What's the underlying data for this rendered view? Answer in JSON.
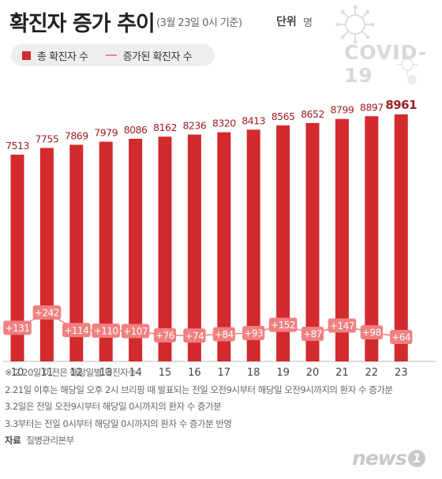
{
  "header": {
    "title": "확진자 증가 추이",
    "subtitle": "(3월 23일 0시 기준)",
    "unit_label": "단위",
    "unit_value": "명"
  },
  "legend": {
    "bar_label": "총 확진자 수",
    "line_label": "증가된 확진자 수"
  },
  "decoration": {
    "covid_text": "COVID-19",
    "icon": "virus-icon"
  },
  "colors": {
    "bar": "#d32a2e",
    "line": "#f08080",
    "value_text": "#a01e23",
    "bubble_text": "#ffffff"
  },
  "chart_data": {
    "type": "bar",
    "categories": [
      "10",
      "11",
      "12",
      "13",
      "14",
      "15",
      "16",
      "17",
      "18",
      "19",
      "20",
      "21",
      "22",
      "23"
    ],
    "series": [
      {
        "name": "총 확진자 수",
        "type": "bar",
        "values": [
          7513,
          7755,
          7869,
          7979,
          8086,
          8162,
          8236,
          8320,
          8413,
          8565,
          8652,
          8799,
          8897,
          8961
        ]
      },
      {
        "name": "증가된 확진자 수",
        "type": "line",
        "values": [
          131,
          242,
          114,
          110,
          107,
          76,
          74,
          84,
          93,
          152,
          87,
          147,
          98,
          64
        ],
        "labels": [
          "+131",
          "+242",
          "+114",
          "+110",
          "+107",
          "+76",
          "+74",
          "+84",
          "+93",
          "+152",
          "+87",
          "+147",
          "+98",
          "+64"
        ]
      }
    ],
    "value_labels": [
      "7513",
      "7755",
      "7869",
      "7979",
      "8086",
      "8162",
      "8236",
      "8320",
      "8413",
      "8565",
      "8652",
      "8799",
      "8897",
      "8961"
    ],
    "highlight_last": true
  },
  "footnotes": [
    "※ 2.20일 이전은 해당일별 확진자수",
    "2.21일 이후는 해당일 오후 2시 브리핑 때 발표되는 전일 오전9시부터 해당일 오전9시까지의 환자 수 증가분",
    "3.2일은 전일 오전9시부터 해당일 0시까지의 환자 수 증가분",
    "3.3부터는 전일 0시부터 해당일 0시까지의 환자 수 증가분 반영"
  ],
  "source": {
    "label": "자료",
    "value": "질병관리본부"
  },
  "logo": {
    "text": "news",
    "number": "1"
  }
}
